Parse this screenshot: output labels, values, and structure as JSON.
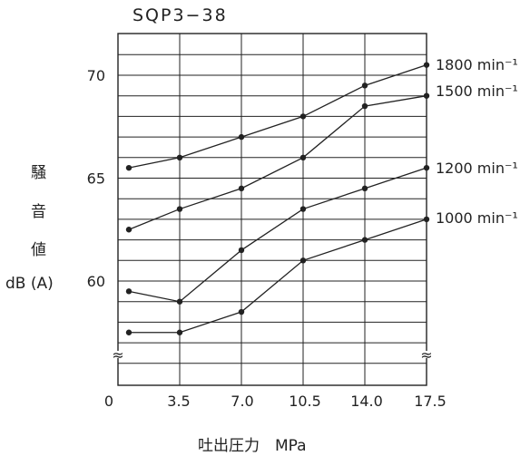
{
  "chart_data": {
    "type": "line",
    "title": "SQP3−38",
    "ylabel_chars": [
      "騒",
      "音",
      "値"
    ],
    "ylabel_unit": "dB (A)",
    "xlabel": "吐出圧力　MPa",
    "x_ticks": [
      "0",
      "3.5",
      "7.0",
      "10.5",
      "14.0",
      "17.5"
    ],
    "y_ticks": [
      "60",
      "65",
      "70"
    ],
    "xlim": [
      0,
      17.5
    ],
    "ylim": [
      55,
      72
    ],
    "grid": true,
    "axis_break_symbol": "≈",
    "series": [
      {
        "name": "1800 min⁻¹",
        "x": [
          1,
          3.5,
          7.0,
          10.5,
          14.0,
          17.5
        ],
        "y": [
          65.5,
          66,
          67,
          68,
          69.5,
          70.5
        ]
      },
      {
        "name": "1500 min⁻¹",
        "x": [
          1,
          3.5,
          7.0,
          10.5,
          14.0,
          17.5
        ],
        "y": [
          62.5,
          63.5,
          64.5,
          66,
          68.5,
          69
        ]
      },
      {
        "name": "1200 min⁻¹",
        "x": [
          1,
          3.5,
          7.0,
          10.5,
          14.0,
          17.5
        ],
        "y": [
          59.5,
          59,
          61.5,
          63.5,
          64.5,
          65.5
        ]
      },
      {
        "name": "1000 min⁻¹",
        "x": [
          1,
          3.5,
          7.0,
          10.5,
          14.0,
          17.5
        ],
        "y": [
          57.5,
          57.5,
          58.5,
          61,
          62,
          63
        ]
      }
    ]
  }
}
